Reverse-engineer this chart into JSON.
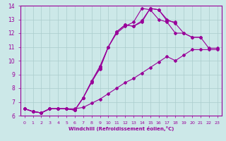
{
  "xlabel": "Windchill (Refroidissement éolien,°C)",
  "background_color": "#cce8e8",
  "line_color": "#990099",
  "grid_color": "#aacccc",
  "xlim": [
    -0.5,
    23.5
  ],
  "ylim": [
    6,
    14
  ],
  "xticks": [
    0,
    1,
    2,
    3,
    4,
    5,
    6,
    7,
    8,
    9,
    10,
    11,
    12,
    13,
    14,
    15,
    16,
    17,
    18,
    19,
    20,
    21,
    22,
    23
  ],
  "yticks": [
    6,
    7,
    8,
    9,
    10,
    11,
    12,
    13,
    14
  ],
  "lines": [
    {
      "x": [
        0,
        1,
        2,
        3,
        4,
        5,
        6,
        7,
        8,
        9,
        10,
        11,
        12,
        13,
        14,
        15,
        16,
        17,
        18
      ],
      "y": [
        6.5,
        6.3,
        6.2,
        6.5,
        6.5,
        6.5,
        6.4,
        7.3,
        8.5,
        9.6,
        11.0,
        12.1,
        12.6,
        12.5,
        12.9,
        13.8,
        13.7,
        12.9,
        12.8
      ]
    },
    {
      "x": [
        0,
        1,
        2,
        3,
        4,
        5,
        6,
        7,
        8,
        9,
        10,
        11,
        12,
        13,
        14,
        15,
        16,
        17,
        18,
        19,
        20,
        21
      ],
      "y": [
        6.5,
        6.3,
        6.2,
        6.5,
        6.5,
        6.5,
        6.4,
        7.3,
        8.5,
        9.4,
        11.0,
        12.1,
        12.6,
        12.5,
        12.8,
        13.8,
        13.7,
        13.0,
        12.7,
        12.0,
        11.7,
        11.7
      ]
    },
    {
      "x": [
        0,
        1,
        2,
        3,
        4,
        5,
        6,
        7,
        8,
        9,
        10,
        11,
        12,
        13,
        14,
        15,
        16,
        17,
        18,
        19,
        20,
        21,
        22,
        23
      ],
      "y": [
        6.5,
        6.3,
        6.2,
        6.5,
        6.5,
        6.5,
        6.4,
        7.3,
        8.4,
        9.5,
        11.0,
        12.0,
        12.5,
        12.8,
        13.8,
        13.7,
        13.0,
        12.8,
        12.0,
        12.0,
        11.7,
        11.7,
        10.9,
        10.9
      ]
    },
    {
      "x": [
        0,
        1,
        2,
        3,
        4,
        5,
        6,
        7,
        8,
        9,
        10,
        11,
        12,
        13,
        14,
        15,
        16,
        17,
        18,
        19,
        20,
        21,
        22,
        23
      ],
      "y": [
        6.5,
        6.3,
        6.2,
        6.5,
        6.5,
        6.5,
        6.5,
        6.6,
        6.9,
        7.2,
        7.6,
        8.0,
        8.4,
        8.7,
        9.1,
        9.5,
        9.9,
        10.3,
        10.0,
        10.4,
        10.8,
        10.8,
        10.8,
        10.8
      ]
    }
  ]
}
